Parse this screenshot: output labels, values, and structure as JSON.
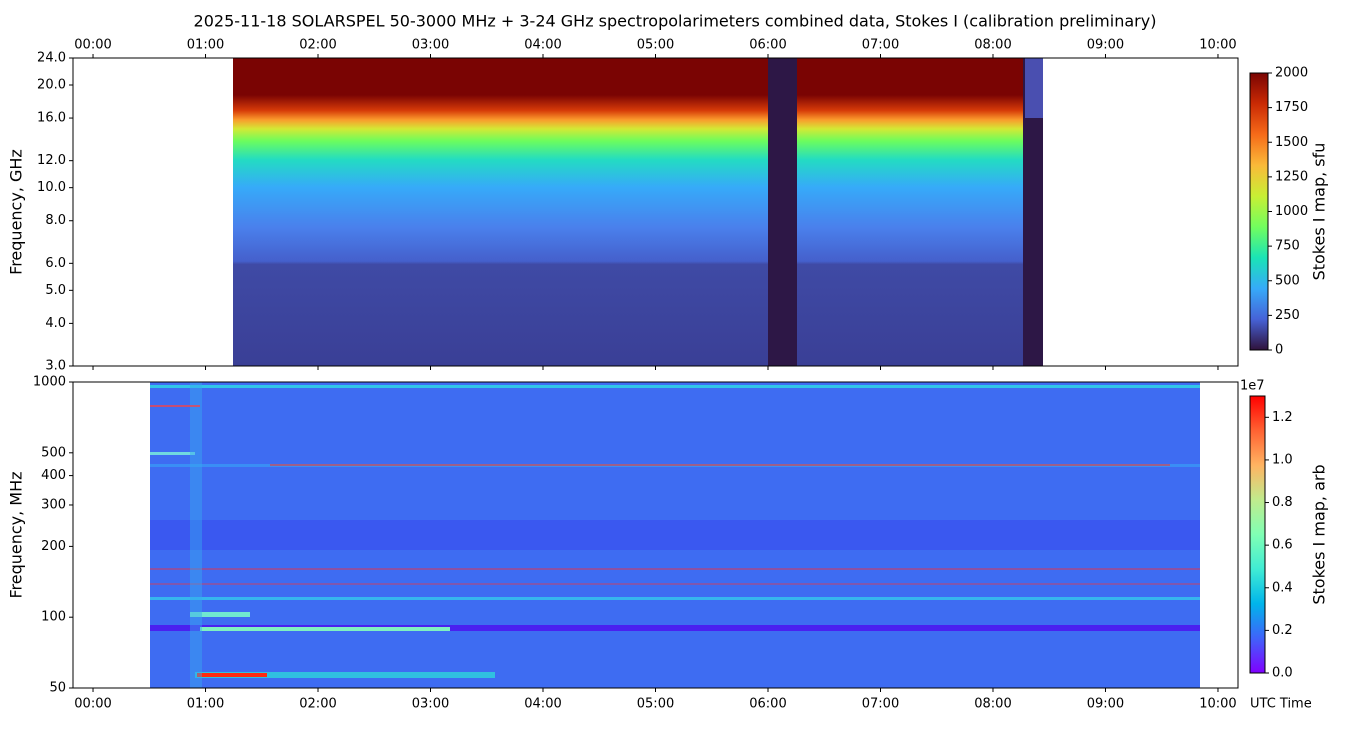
{
  "chart_data": [
    {
      "type": "heatmap",
      "title": "2025-11-18  SOLARSPEL  50-3000 MHz  +  3-24 GHz  spectropolarimeters combined data,  Stokes I  (calibration preliminary)",
      "y_label": "Frequency, GHz",
      "yscale": "log",
      "xaxis_position": "top",
      "xlim": [
        -0.178,
        10.178
      ],
      "xticks": [
        {
          "value": 0,
          "label": "00:00"
        },
        {
          "value": 1,
          "label": "01:00"
        },
        {
          "value": 2,
          "label": "02:00"
        },
        {
          "value": 3,
          "label": "03:00"
        },
        {
          "value": 4,
          "label": "04:00"
        },
        {
          "value": 5,
          "label": "05:00"
        },
        {
          "value": 6,
          "label": "06:00"
        },
        {
          "value": 7,
          "label": "07:00"
        },
        {
          "value": 8,
          "label": "08:00"
        },
        {
          "value": 9,
          "label": "09:00"
        },
        {
          "value": 10,
          "label": "10:00"
        }
      ],
      "ylim": [
        3,
        24
      ],
      "yticks": [
        {
          "value": 3,
          "label": "3.0"
        },
        {
          "value": 4,
          "label": "4.0"
        },
        {
          "value": 5,
          "label": "5.0"
        },
        {
          "value": 6,
          "label": "6.0"
        },
        {
          "value": 8,
          "label": "8.0"
        },
        {
          "value": 10,
          "label": "10.0"
        },
        {
          "value": 12,
          "label": "12.0"
        },
        {
          "value": 16,
          "label": "16.0"
        },
        {
          "value": 20,
          "label": "20.0"
        },
        {
          "value": 24,
          "label": "24.0"
        }
      ],
      "colorbar": {
        "label": "Stokes I map, sfu",
        "lim": [
          0,
          2000
        ],
        "ticks": [
          0,
          250,
          500,
          750,
          1000,
          1250,
          1500,
          1750,
          2000
        ],
        "colors": [
          "#30123b",
          "#4662d7",
          "#36aaf9",
          "#1ae4b6",
          "#72fe5e",
          "#c8ef34",
          "#faba39",
          "#f66b19",
          "#ca2a04",
          "#7a0403"
        ]
      }
    },
    {
      "type": "heatmap",
      "y_label": "Frequency, MHz",
      "x_label": "UTC Time",
      "yscale": "log",
      "xlim": [
        -0.178,
        10.178
      ],
      "xticks": [
        {
          "value": 0,
          "label": "00:00"
        },
        {
          "value": 1,
          "label": "01:00"
        },
        {
          "value": 2,
          "label": "02:00"
        },
        {
          "value": 3,
          "label": "03:00"
        },
        {
          "value": 4,
          "label": "04:00"
        },
        {
          "value": 5,
          "label": "05:00"
        },
        {
          "value": 6,
          "label": "06:00"
        },
        {
          "value": 7,
          "label": "07:00"
        },
        {
          "value": 8,
          "label": "08:00"
        },
        {
          "value": 9,
          "label": "09:00"
        },
        {
          "value": 10,
          "label": "10:00"
        }
      ],
      "ylim": [
        50,
        1000
      ],
      "yticks": [
        50,
        100,
        200,
        300,
        400,
        500,
        1000
      ],
      "colorbar": {
        "label": "Stokes I map, arb",
        "offset_label": "1e7",
        "lim": [
          0,
          1.3
        ],
        "ticks": [
          {
            "value": 0,
            "label": "0.0"
          },
          {
            "value": 0.2,
            "label": "0.2"
          },
          {
            "value": 0.4,
            "label": "0.4"
          },
          {
            "value": 0.6,
            "label": "0.6"
          },
          {
            "value": 0.8,
            "label": "0.8"
          },
          {
            "value": 1,
            "label": "1.0"
          },
          {
            "value": 1.2,
            "label": "1.2"
          }
        ],
        "colors": [
          "#8000ff",
          "#4062fa",
          "#00b5eb",
          "#40ecd4",
          "#80ffb4",
          "#c0eb8d",
          "#ffb462",
          "#ff6232",
          "#ff0000"
        ]
      }
    }
  ]
}
